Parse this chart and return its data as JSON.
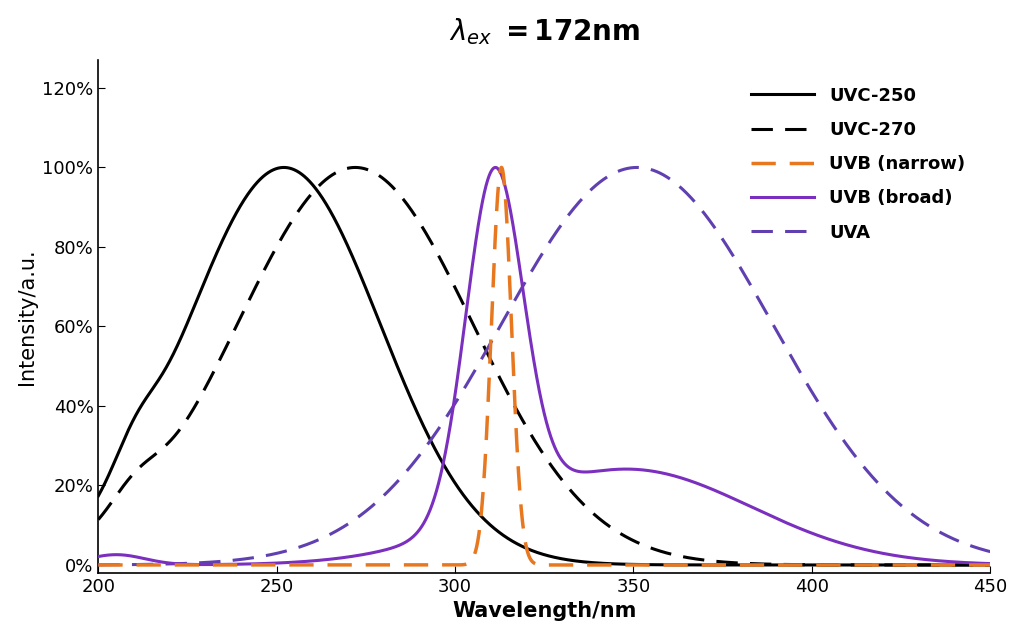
{
  "title_part1": "λ",
  "title": "λ_ex = 172nm",
  "xlabel": "Wavelength/nm",
  "ylabel": "Intensity/a.u.",
  "xlim": [
    200,
    450
  ],
  "ylim": [
    -0.02,
    1.27
  ],
  "yticks": [
    0.0,
    0.2,
    0.4,
    0.6,
    0.8,
    1.0,
    1.2
  ],
  "ytick_labels": [
    "0%",
    "20%",
    "40%",
    "60%",
    "80%",
    "100%",
    "120%"
  ],
  "xticks": [
    200,
    250,
    300,
    350,
    400,
    450
  ],
  "colors": {
    "UVC250": "#000000",
    "UVC270": "#000000",
    "UVB_narrow": "#E87820",
    "UVB_broad": "#7B2FBE",
    "UVA": "#6040B0"
  },
  "background_color": "#ffffff",
  "title_fontsize": 20,
  "axis_label_fontsize": 15,
  "tick_fontsize": 13,
  "legend_fontsize": 13
}
